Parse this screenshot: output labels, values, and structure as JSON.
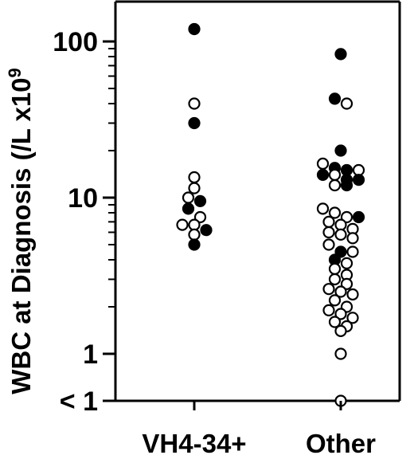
{
  "chart_data": {
    "type": "scatter",
    "ylabel": "WBC at Diagnosis (/L x10",
    "ylabel_superscript": "9",
    "y_scale": "log",
    "ylim": [
      0.5,
      180
    ],
    "y_ticks": [
      {
        "value": 100,
        "label": "100"
      },
      {
        "value": 10,
        "label": "10"
      },
      {
        "value": 1,
        "label": "1"
      },
      {
        "value": 0.5,
        "label": "< 1"
      }
    ],
    "categories": [
      "VH4-34+",
      "Other"
    ],
    "series": [
      {
        "category": "VH4-34+",
        "points": [
          {
            "v": 120,
            "filled": true
          },
          {
            "v": 40,
            "filled": false
          },
          {
            "v": 30,
            "filled": true
          },
          {
            "v": 13.5,
            "filled": false
          },
          {
            "v": 11.5,
            "filled": false
          },
          {
            "v": 10,
            "filled": false
          },
          {
            "v": 9.5,
            "filled": true
          },
          {
            "v": 8.5,
            "filled": true
          },
          {
            "v": 7.5,
            "filled": false
          },
          {
            "v": 6.7,
            "filled": false
          },
          {
            "v": 6.7,
            "filled": false
          },
          {
            "v": 6.2,
            "filled": true
          },
          {
            "v": 5.8,
            "filled": false
          },
          {
            "v": 5,
            "filled": true
          }
        ]
      },
      {
        "category": "Other",
        "points": [
          {
            "v": 83,
            "filled": true
          },
          {
            "v": 43,
            "filled": true
          },
          {
            "v": 40,
            "filled": false
          },
          {
            "v": 20,
            "filled": true
          },
          {
            "v": 16.5,
            "filled": false
          },
          {
            "v": 15.5,
            "filled": true
          },
          {
            "v": 15,
            "filled": true
          },
          {
            "v": 15,
            "filled": false
          },
          {
            "v": 14,
            "filled": true
          },
          {
            "v": 14,
            "filled": false
          },
          {
            "v": 13,
            "filled": true
          },
          {
            "v": 13,
            "filled": true
          },
          {
            "v": 12,
            "filled": false
          },
          {
            "v": 12,
            "filled": true
          },
          {
            "v": 8.5,
            "filled": false
          },
          {
            "v": 8,
            "filled": false
          },
          {
            "v": 7.5,
            "filled": false
          },
          {
            "v": 7.5,
            "filled": true
          },
          {
            "v": 7,
            "filled": false
          },
          {
            "v": 6.7,
            "filled": false
          },
          {
            "v": 6.3,
            "filled": false
          },
          {
            "v": 6,
            "filled": false
          },
          {
            "v": 5.8,
            "filled": false
          },
          {
            "v": 5.5,
            "filled": false
          },
          {
            "v": 5,
            "filled": false
          },
          {
            "v": 4.5,
            "filled": true
          },
          {
            "v": 4.5,
            "filled": false
          },
          {
            "v": 4,
            "filled": true
          },
          {
            "v": 3.8,
            "filled": false
          },
          {
            "v": 3.5,
            "filled": false
          },
          {
            "v": 3.2,
            "filled": false
          },
          {
            "v": 3,
            "filled": false
          },
          {
            "v": 2.8,
            "filled": false
          },
          {
            "v": 2.6,
            "filled": false
          },
          {
            "v": 2.5,
            "filled": false
          },
          {
            "v": 2.4,
            "filled": false
          },
          {
            "v": 2.2,
            "filled": false
          },
          {
            "v": 2,
            "filled": false
          },
          {
            "v": 1.9,
            "filled": false
          },
          {
            "v": 1.8,
            "filled": false
          },
          {
            "v": 1.7,
            "filled": false
          },
          {
            "v": 1.6,
            "filled": false
          },
          {
            "v": 1.5,
            "filled": false
          },
          {
            "v": 1.4,
            "filled": false
          },
          {
            "v": 1,
            "filled": false
          },
          {
            "v": 0.5,
            "filled": false
          }
        ]
      }
    ],
    "grid": false,
    "legend": "none"
  },
  "colors": {
    "axis": "#000000",
    "filled_marker": "#000000",
    "open_marker_fill": "#ffffff",
    "background": "#ffffff"
  }
}
